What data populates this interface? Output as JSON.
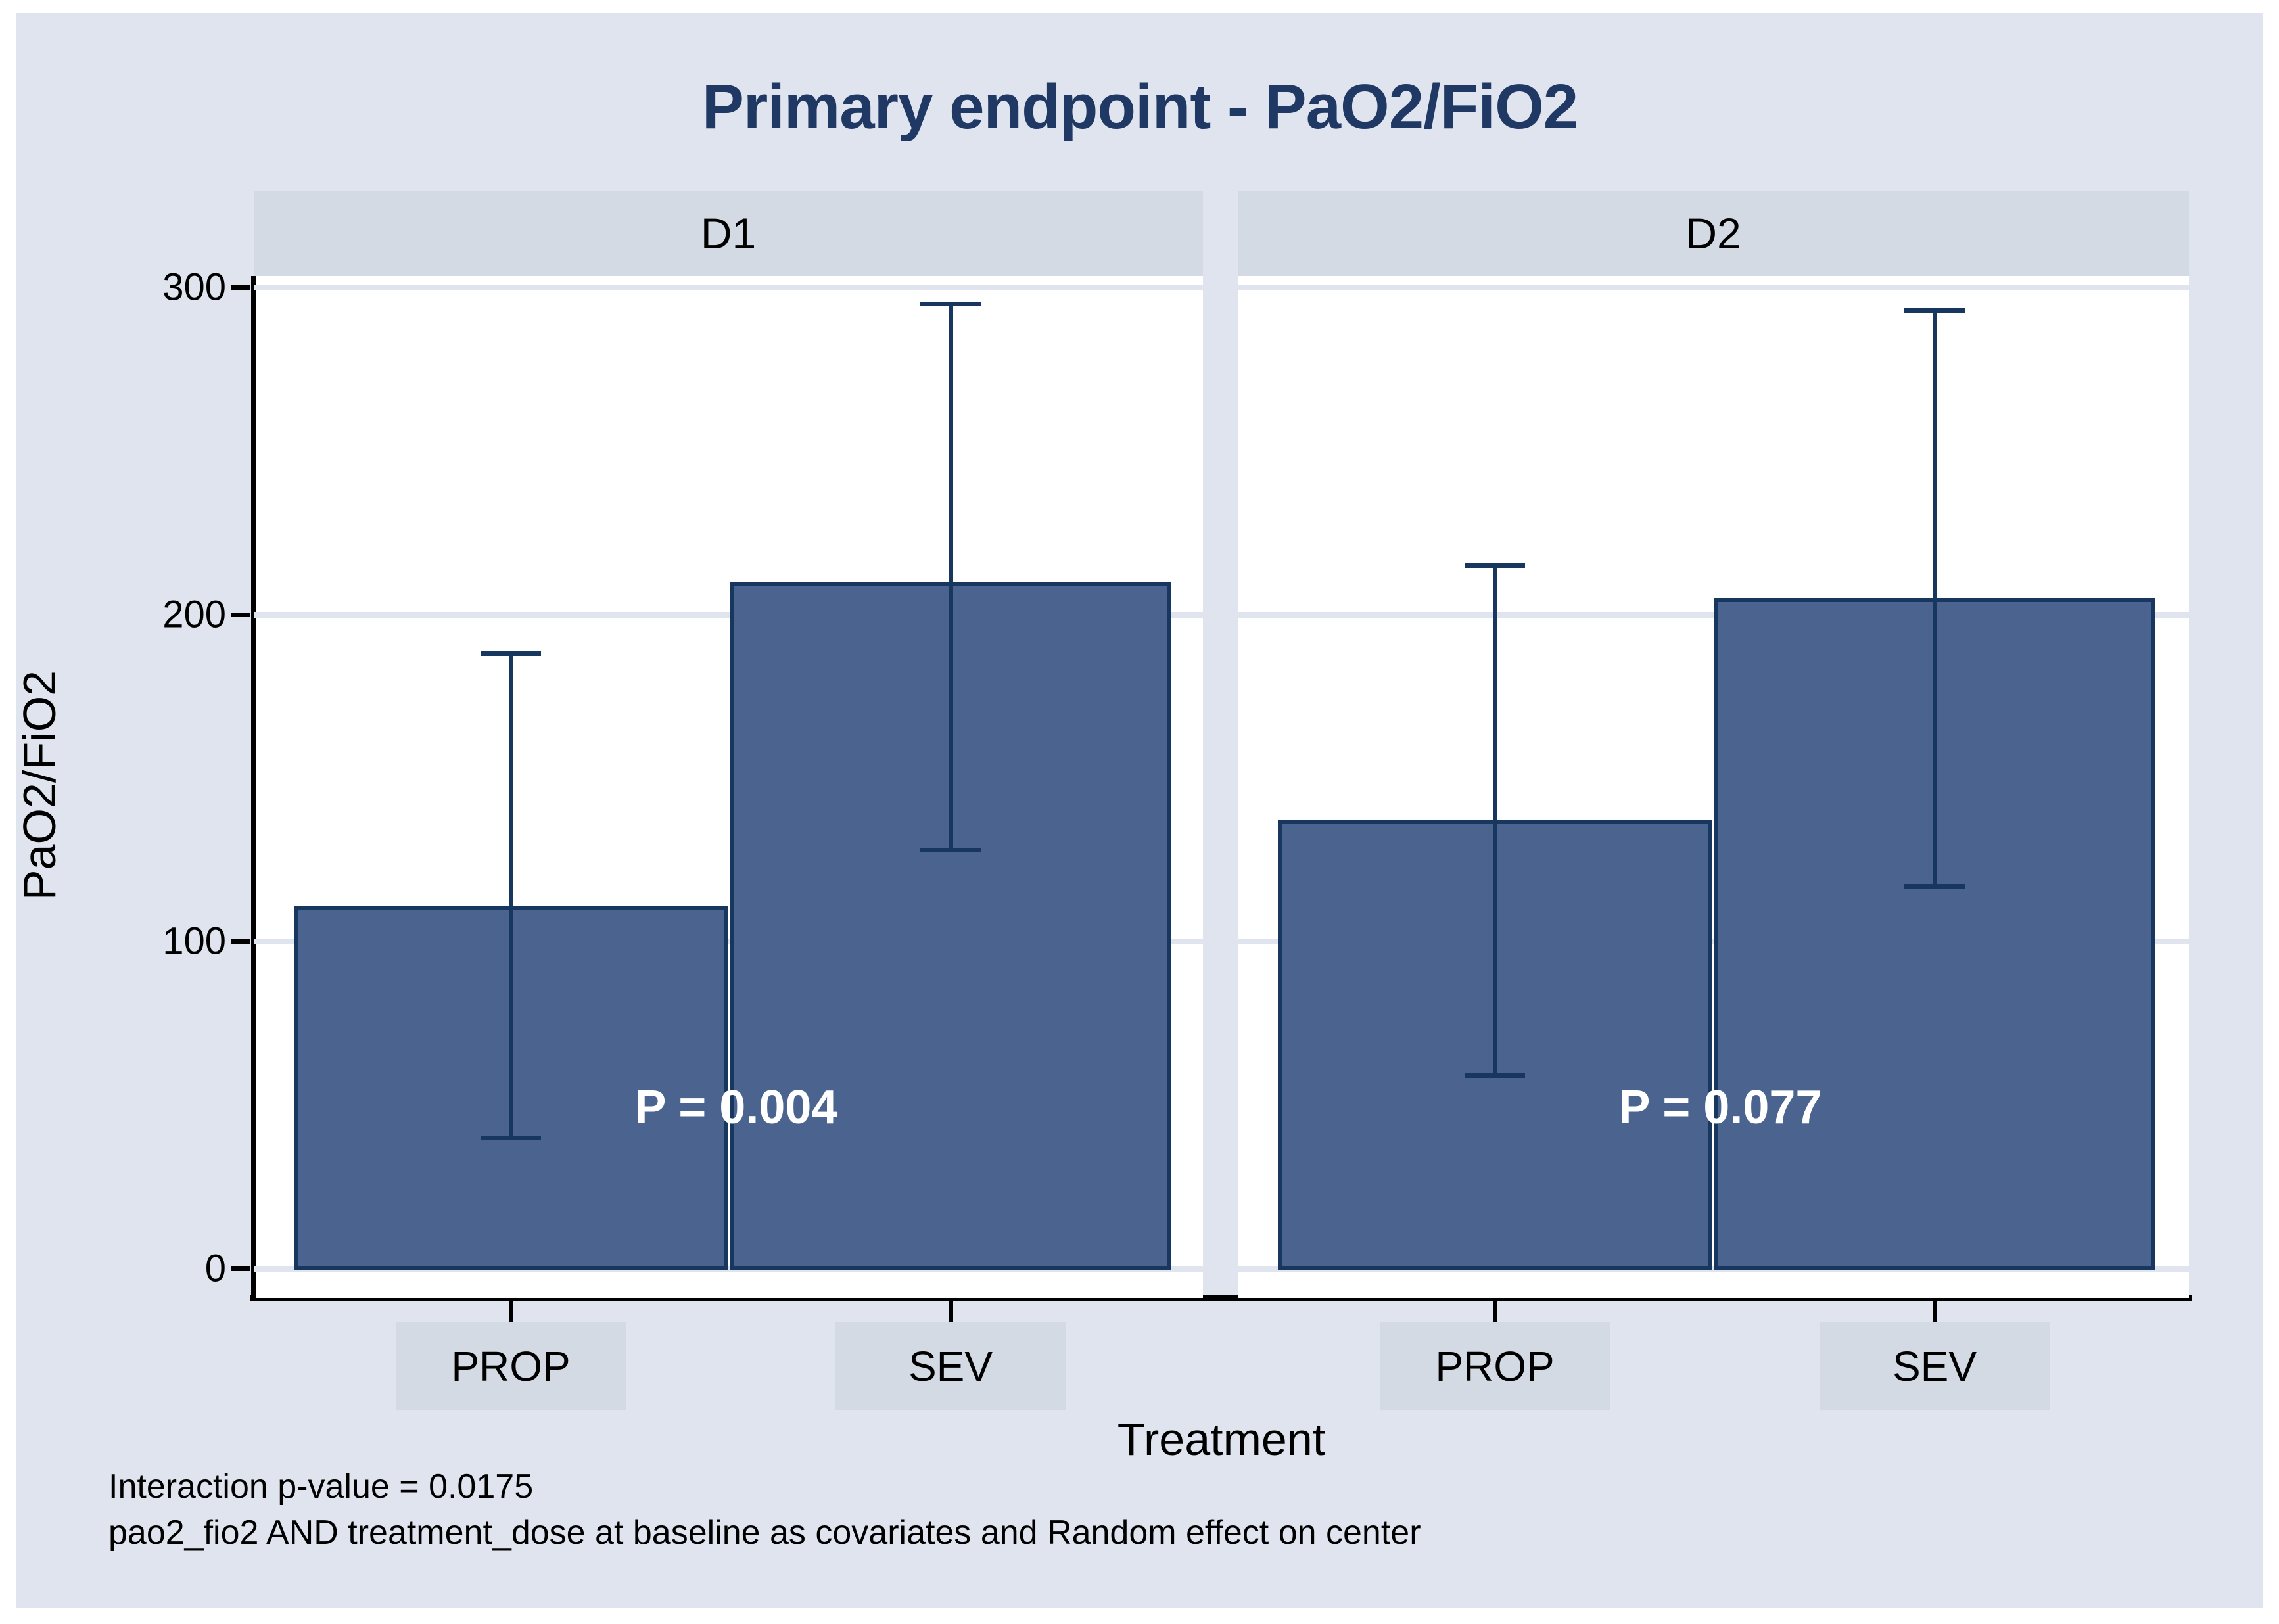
{
  "chart_data": {
    "type": "bar",
    "title": "Primary endpoint - PaO2/FiO2",
    "xlabel": "Treatment",
    "ylabel": "PaO2/FiO2",
    "ylim": [
      0,
      300
    ],
    "yticks": [
      0,
      100,
      200,
      300
    ],
    "ytick_labels": [
      "0",
      "100",
      "200",
      "300"
    ],
    "grid": true,
    "legend": "none",
    "categories": [
      "PROP",
      "SEV"
    ],
    "panels": [
      {
        "label": "D1",
        "p_value_label": "P = 0.004",
        "series": [
          {
            "category": "PROP",
            "mean": 111,
            "ci_low": 40,
            "ci_high": 188
          },
          {
            "category": "SEV",
            "mean": 210,
            "ci_low": 128,
            "ci_high": 295
          }
        ]
      },
      {
        "label": "D2",
        "p_value_label": "P = 0.077",
        "series": [
          {
            "category": "PROP",
            "mean": 137,
            "ci_low": 59,
            "ci_high": 215
          },
          {
            "category": "SEV",
            "mean": 205,
            "ci_low": 117,
            "ci_high": 293
          }
        ]
      }
    ]
  },
  "footer": {
    "line1": "Interaction p-value = 0.0175",
    "line2": "pao2_fio2 AND treatment_dose at baseline as covariates and Random effect on center"
  },
  "colors": {
    "canvas": "#dfe4ee",
    "band": "#d3dae4",
    "bar_fill": "#4a648f",
    "bar_border": "#17375e",
    "title": "#1f3864",
    "axis": "#000000",
    "p_label_text": "#ffffff"
  }
}
